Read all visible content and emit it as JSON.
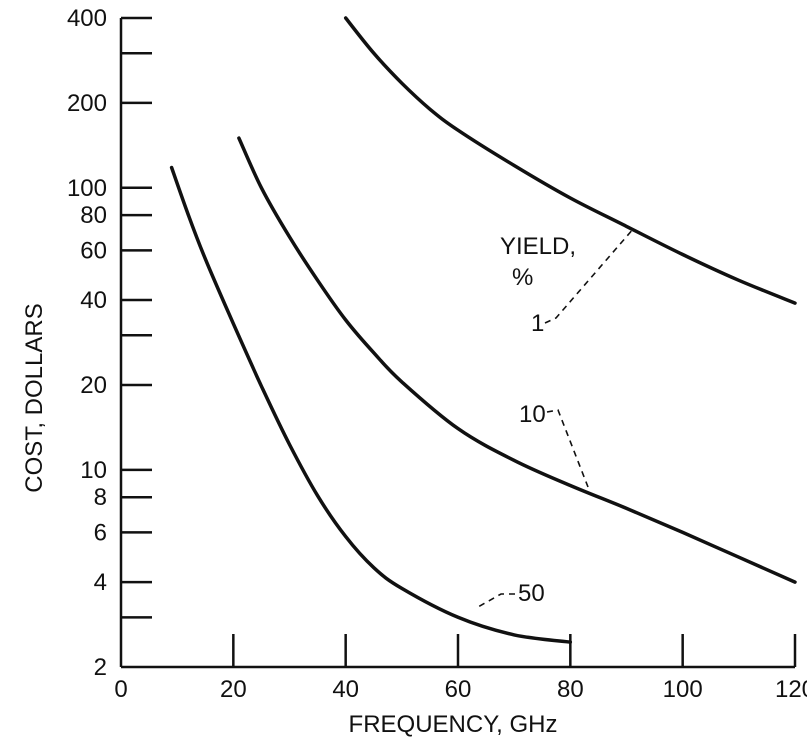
{
  "chart_data": {
    "type": "line",
    "title": "",
    "xlabel": "FREQUENCY, GHz",
    "ylabel": "COST, DOLLARS",
    "xlim": [
      0,
      120
    ],
    "ylim": [
      2,
      400
    ],
    "yscale": "log",
    "grid": false,
    "x_ticks": [
      0,
      20,
      40,
      60,
      80,
      100,
      120
    ],
    "x_tick_labels": [
      "0",
      "20",
      "40",
      "60",
      "80",
      "100",
      "120"
    ],
    "y_major_ticks": [
      2,
      4,
      6,
      8,
      10,
      20,
      40,
      60,
      80,
      100,
      200,
      400
    ],
    "y_minor_ticks": [
      3,
      30,
      300
    ],
    "y_tick_labels": [
      "2",
      "4",
      "6",
      "8",
      "10",
      "20",
      "40",
      "60",
      "80",
      "100",
      "200",
      "400"
    ],
    "legend_title": "YIELD, %",
    "series": [
      {
        "name": "1",
        "x": [
          40,
          45,
          50,
          55,
          60,
          70,
          80,
          90,
          100,
          110,
          120
        ],
        "y": [
          400,
          300,
          235,
          190,
          160,
          120,
          92,
          73,
          58,
          47,
          39
        ]
      },
      {
        "name": "10",
        "x": [
          21,
          25,
          30,
          35,
          40,
          45,
          50,
          60,
          70,
          80,
          90,
          100,
          110,
          120
        ],
        "y": [
          150,
          100,
          67,
          47,
          34,
          26,
          20.5,
          14,
          10.8,
          8.8,
          7.3,
          6.0,
          4.9,
          4.0
        ]
      },
      {
        "name": "50",
        "x": [
          9,
          12,
          15,
          20,
          25,
          30,
          35,
          40,
          45,
          50,
          60,
          70,
          80
        ],
        "y": [
          118,
          80,
          56,
          33,
          19.8,
          12.3,
          8.1,
          5.8,
          4.5,
          3.8,
          3.0,
          2.6,
          2.45
        ]
      }
    ]
  }
}
